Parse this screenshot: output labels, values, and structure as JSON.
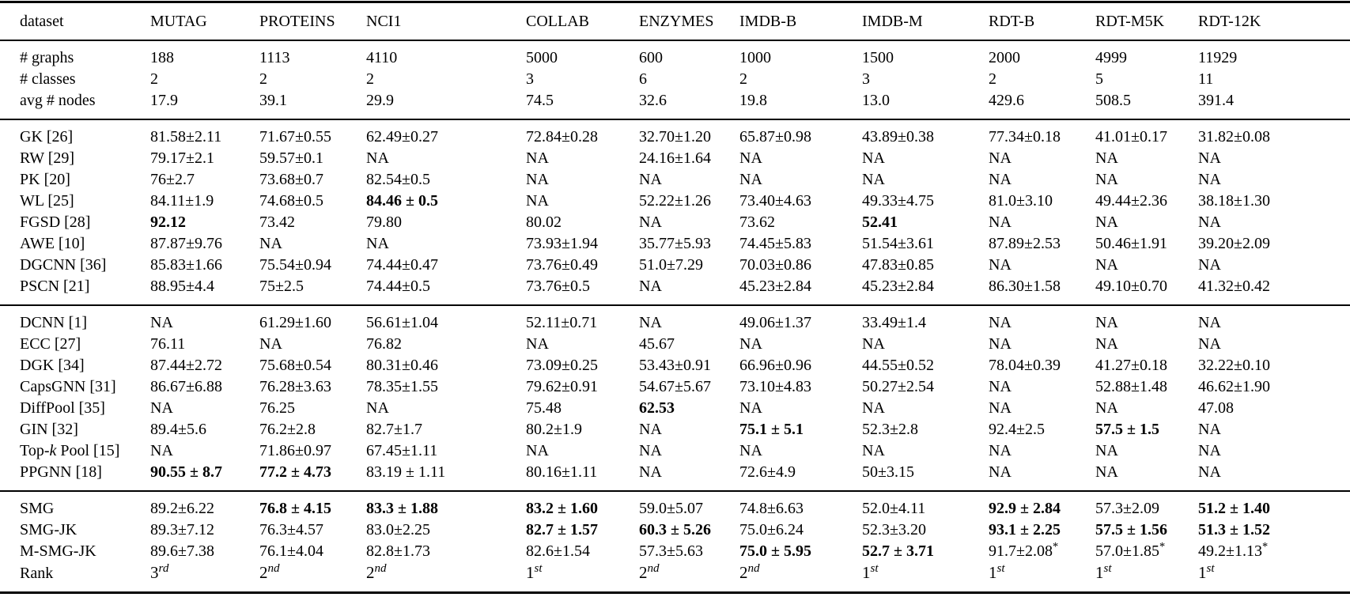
{
  "table": {
    "header": {
      "columns": [
        "dataset",
        "MUTAG",
        "PROTEINS",
        "NCI1",
        "COLLAB",
        "ENZYMES",
        "IMDB-B",
        "IMDB-M",
        "RDT-B",
        "RDT-M5K",
        "RDT-12K"
      ]
    },
    "sections": [
      {
        "name": "dataset-stats",
        "rows": [
          {
            "label": "# graphs",
            "values": [
              "188",
              "1113",
              "4110",
              "5000",
              "600",
              "1000",
              "1500",
              "2000",
              "4999",
              "11929"
            ],
            "bold": []
          },
          {
            "label": "# classes",
            "values": [
              "2",
              "2",
              "2",
              "3",
              "6",
              "2",
              "3",
              "2",
              "5",
              "11"
            ],
            "bold": []
          },
          {
            "label": "avg # nodes",
            "values": [
              "17.9",
              "39.1",
              "29.9",
              "74.5",
              "32.6",
              "19.8",
              "13.0",
              "429.6",
              "508.5",
              "391.4"
            ],
            "bold": []
          }
        ]
      },
      {
        "name": "graph-kernel-methods",
        "rows": [
          {
            "label": "GK [26]",
            "values": [
              "81.58±2.11",
              "71.67±0.55",
              "62.49±0.27",
              "72.84±0.28",
              "32.70±1.20",
              "65.87±0.98",
              "43.89±0.38",
              "77.34±0.18",
              "41.01±0.17",
              "31.82±0.08"
            ],
            "bold": []
          },
          {
            "label": "RW [29]",
            "values": [
              "79.17±2.1",
              "59.57±0.1",
              "NA",
              "NA",
              "24.16±1.64",
              "NA",
              "NA",
              "NA",
              "NA",
              "NA"
            ],
            "bold": []
          },
          {
            "label": "PK [20]",
            "values": [
              "76±2.7",
              "73.68±0.7",
              "82.54±0.5",
              "NA",
              "NA",
              "NA",
              "NA",
              "NA",
              "NA",
              "NA"
            ],
            "bold": []
          },
          {
            "label": "WL [25]",
            "values": [
              "84.11±1.9",
              "74.68±0.5",
              "84.46 ± 0.5",
              "NA",
              "52.22±1.26",
              "73.40±4.63",
              "49.33±4.75",
              "81.0±3.10",
              "49.44±2.36",
              "38.18±1.30"
            ],
            "bold": [
              2
            ]
          },
          {
            "label": "FGSD [28]",
            "values": [
              "92.12",
              "73.42",
              "79.80",
              "80.02",
              "NA",
              "73.62",
              "52.41",
              "NA",
              "NA",
              "NA"
            ],
            "bold": [
              0,
              6
            ]
          },
          {
            "label": "AWE [10]",
            "values": [
              "87.87±9.76",
              "NA",
              "NA",
              "73.93±1.94",
              "35.77±5.93",
              "74.45±5.83",
              "51.54±3.61",
              "87.89±2.53",
              "50.46±1.91",
              "39.20±2.09"
            ],
            "bold": []
          },
          {
            "label": "DGCNN [36]",
            "values": [
              "85.83±1.66",
              "75.54±0.94",
              "74.44±0.47",
              "73.76±0.49",
              "51.0±7.29",
              "70.03±0.86",
              "47.83±0.85",
              "NA",
              "NA",
              "NA"
            ],
            "bold": []
          },
          {
            "label": "PSCN [21]",
            "values": [
              "88.95±4.4",
              "75±2.5",
              "74.44±0.5",
              "73.76±0.5",
              "NA",
              "45.23±2.84",
              "45.23±2.84",
              "86.30±1.58",
              "49.10±0.70",
              "41.32±0.42"
            ],
            "bold": []
          }
        ]
      },
      {
        "name": "gnn-methods",
        "rows": [
          {
            "label": "DCNN [1]",
            "values": [
              "NA",
              "61.29±1.60",
              "56.61±1.04",
              "52.11±0.71",
              "NA",
              "49.06±1.37",
              "33.49±1.4",
              "NA",
              "NA",
              "NA"
            ],
            "bold": []
          },
          {
            "label": "ECC [27]",
            "values": [
              "76.11",
              "NA",
              "76.82",
              "NA",
              "45.67",
              "NA",
              "NA",
              "NA",
              "NA",
              "NA"
            ],
            "bold": []
          },
          {
            "label": "DGK [34]",
            "values": [
              "87.44±2.72",
              "75.68±0.54",
              "80.31±0.46",
              "73.09±0.25",
              "53.43±0.91",
              "66.96±0.96",
              "44.55±0.52",
              "78.04±0.39",
              "41.27±0.18",
              "32.22±0.10"
            ],
            "bold": []
          },
          {
            "label": "CapsGNN [31]",
            "values": [
              "86.67±6.88",
              "76.28±3.63",
              "78.35±1.55",
              "79.62±0.91",
              "54.67±5.67",
              "73.10±4.83",
              "50.27±2.54",
              "NA",
              "52.88±1.48",
              "46.62±1.90"
            ],
            "bold": []
          },
          {
            "label": "DiffPool [35]",
            "values": [
              "NA",
              "76.25",
              "NA",
              "75.48",
              "62.53",
              "NA",
              "NA",
              "NA",
              "NA",
              "47.08"
            ],
            "bold": [
              4
            ]
          },
          {
            "label": "GIN [32]",
            "values": [
              "89.4±5.6",
              "76.2±2.8",
              "82.7±1.7",
              "80.2±1.9",
              "NA",
              "75.1 ± 5.1",
              "52.3±2.8",
              "92.4±2.5",
              "57.5 ± 1.5",
              "NA"
            ],
            "bold": [
              5,
              8
            ]
          },
          {
            "label": "Top-k Pool [15]",
            "values": [
              "NA",
              "71.86±0.97",
              "67.45±1.11",
              "NA",
              "NA",
              "NA",
              "NA",
              "NA",
              "NA",
              "NA"
            ],
            "bold": []
          },
          {
            "label": "PPGNN [18]",
            "values": [
              "90.55 ± 8.7",
              "77.2 ± 4.73",
              "83.19 ± 1.11",
              "80.16±1.11",
              "NA",
              "72.6±4.9",
              "50±3.15",
              "NA",
              "NA",
              "NA"
            ],
            "bold": [
              0,
              1
            ]
          }
        ]
      },
      {
        "name": "proposed-methods",
        "rows": [
          {
            "label": "SMG",
            "values": [
              "89.2±6.22",
              "76.8 ± 4.15",
              "83.3 ± 1.88",
              "83.2 ± 1.60",
              "59.0±5.07",
              "74.8±6.63",
              "52.0±4.11",
              "92.9 ± 2.84",
              "57.3±2.09",
              "51.2 ± 1.40"
            ],
            "bold": [
              1,
              2,
              3,
              7,
              9
            ]
          },
          {
            "label": "SMG-JK",
            "values": [
              "89.3±7.12",
              "76.3±4.57",
              "83.0±2.25",
              "82.7 ± 1.57",
              "60.3 ± 5.26",
              "75.0±6.24",
              "52.3±3.20",
              "93.1 ± 2.25",
              "57.5 ± 1.56",
              "51.3 ± 1.52"
            ],
            "bold": [
              3,
              4,
              7,
              8,
              9
            ]
          },
          {
            "label": "M-SMG-JK",
            "values": [
              "89.6±7.38",
              "76.1±4.04",
              "82.8±1.73",
              "82.6±1.54",
              "57.3±5.63",
              "75.0 ± 5.95",
              "52.7 ± 3.71",
              "91.7±2.08*",
              "57.0±1.85*",
              "49.2±1.13*"
            ],
            "bold": [
              5,
              6
            ]
          },
          {
            "label": "Rank",
            "values": [
              "3rd",
              "2nd",
              "2nd",
              "1st",
              "2nd",
              "2nd",
              "1st",
              "1st",
              "1st",
              "1st"
            ],
            "bold": []
          }
        ]
      }
    ]
  }
}
